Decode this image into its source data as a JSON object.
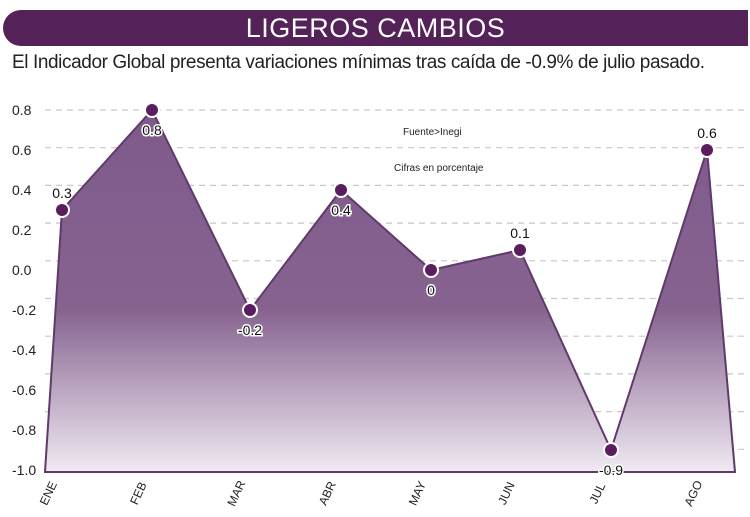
{
  "header": {
    "title": "LIGEROS CAMBIOS",
    "subtitle": "El Indicador Global presenta variaciones mínimas tras caída de -0.9% de julio pasado."
  },
  "notes": {
    "source": "Fuente>Inegi",
    "units": "Cifras en porcentaje"
  },
  "colors": {
    "accent": "#552159",
    "area_top": "#7e5a8c",
    "area_bottom": "#f0eaf2",
    "point": "#5a1e5e"
  },
  "chart_data": {
    "type": "area",
    "title": "LIGEROS CAMBIOS",
    "categories": [
      "ENE",
      "FEB",
      "MAR",
      "ABR",
      "MAY",
      "JUN",
      "JUL",
      "AGO"
    ],
    "values": [
      0.3,
      0.8,
      -0.2,
      0.4,
      0,
      0.1,
      -0.9,
      0.6
    ],
    "data_labels": [
      "0.3",
      "0.8",
      "-0.2",
      "0.4",
      "0",
      "0.1",
      "-0.9",
      "0.6"
    ],
    "ylim": [
      -1.0,
      0.8
    ],
    "yticks": [
      "0.8",
      "0.6",
      "0.4",
      "0.2",
      "0.0",
      "-0.2",
      "-0.4",
      "-0.6",
      "-0.8",
      "-1.0"
    ],
    "grid": true,
    "xlabel": "",
    "ylabel": ""
  }
}
